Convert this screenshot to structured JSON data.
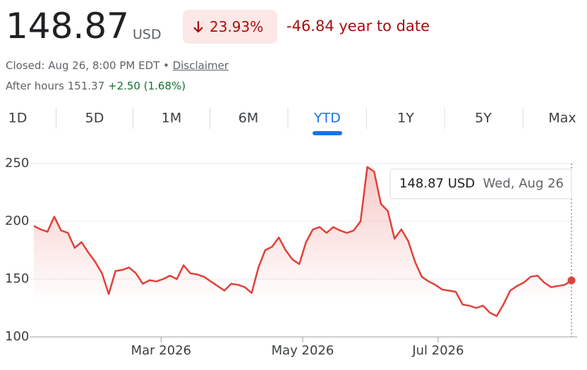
{
  "header": {
    "price": "148.87",
    "currency": "USD",
    "change": "23.93%",
    "change_ytd": "-46.84 year to date",
    "closed": "Closed: Aug 26, 8:00 PM EDT",
    "separator": "•",
    "disclaimer": "Disclaimer",
    "after_hours_label": "After hours 151.37",
    "after_hours_change": "+2.50 (1.68%)"
  },
  "tabs": [
    "1D",
    "5D",
    "1M",
    "6M",
    "YTD",
    "1Y",
    "5Y",
    "Max"
  ],
  "selected_tab": "YTD",
  "chart_data": {
    "type": "line",
    "color": "#e0413a",
    "values": [
      196,
      193,
      191,
      204,
      192,
      190,
      177,
      182,
      173,
      165,
      155,
      137,
      157,
      158,
      160,
      155,
      146,
      149,
      148,
      150,
      153,
      150,
      162,
      155,
      154,
      152,
      148,
      144,
      140,
      146,
      145,
      143,
      138,
      160,
      175,
      178,
      186,
      175,
      167,
      163,
      182,
      193,
      195,
      190,
      195,
      192,
      190,
      192,
      200,
      247,
      243,
      215,
      209,
      185,
      193,
      183,
      165,
      152,
      148,
      145,
      141,
      140,
      139,
      128,
      127,
      125,
      127,
      121,
      118,
      128,
      140,
      144,
      147,
      152,
      153,
      147,
      143,
      144,
      145,
      148.87
    ],
    "xlim": [
      0,
      79
    ],
    "xticks": [
      {
        "value": 18.7,
        "label": "Mar 2026"
      },
      {
        "value": 39.5,
        "label": "May 2026"
      },
      {
        "value": 59.4,
        "label": "Jul 2026"
      }
    ],
    "ylim": [
      100,
      250
    ],
    "yticks": [
      100,
      150,
      200,
      250
    ],
    "grid": true,
    "tooltip": {
      "value": "148.87 USD",
      "date": "Wed, Aug 26"
    }
  }
}
